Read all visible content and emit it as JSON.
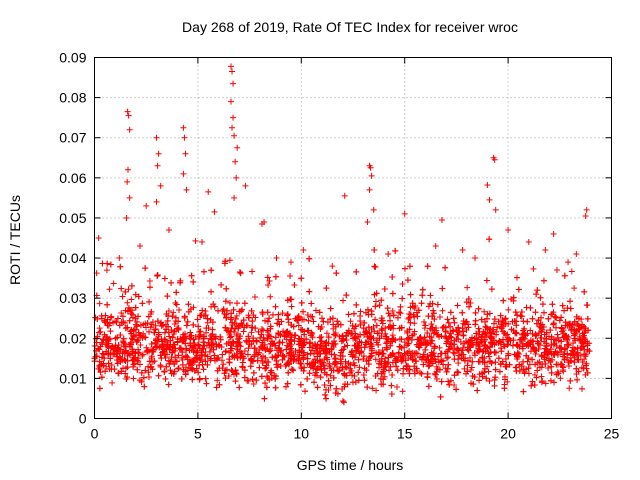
{
  "chart_data": {
    "type": "scatter",
    "title": "Day 268 of 2019, Rate Of TEC Index for receiver wroc",
    "xlabel": "GPS time / hours",
    "ylabel": "ROTI / TECUs",
    "xlim": [
      0,
      25
    ],
    "ylim": [
      0,
      0.09
    ],
    "x_ticks": [
      0,
      5,
      10,
      15,
      20,
      25
    ],
    "x_tick_labels": [
      "0",
      "5",
      "10",
      "15",
      "20",
      "25"
    ],
    "y_ticks": [
      0,
      0.01,
      0.02,
      0.03,
      0.04,
      0.05,
      0.06,
      0.07,
      0.08,
      0.09
    ],
    "y_tick_labels": [
      "0",
      "0.01",
      "0.02",
      "0.03",
      "0.04",
      "0.05",
      "0.06",
      "0.07",
      "0.08",
      "0.09"
    ],
    "grid": true,
    "marker": "+",
    "marker_color": "#ff0000",
    "series": [
      {
        "name": "ROTI",
        "points": [
          [
            1.6,
            0.0765
          ],
          [
            1.65,
            0.0755
          ],
          [
            1.7,
            0.072
          ],
          [
            1.62,
            0.062
          ],
          [
            1.58,
            0.059
          ],
          [
            1.7,
            0.055
          ],
          [
            1.55,
            0.05
          ],
          [
            3.0,
            0.07
          ],
          [
            3.1,
            0.066
          ],
          [
            3.05,
            0.063
          ],
          [
            3.2,
            0.058
          ],
          [
            3.0,
            0.054
          ],
          [
            4.3,
            0.0725
          ],
          [
            4.35,
            0.07
          ],
          [
            4.4,
            0.066
          ],
          [
            4.3,
            0.061
          ],
          [
            4.45,
            0.057
          ],
          [
            6.6,
            0.0878
          ],
          [
            6.65,
            0.0865
          ],
          [
            6.7,
            0.0835
          ],
          [
            6.6,
            0.079
          ],
          [
            6.7,
            0.075
          ],
          [
            6.65,
            0.0725
          ],
          [
            6.75,
            0.0705
          ],
          [
            6.9,
            0.0675
          ],
          [
            6.8,
            0.064
          ],
          [
            6.85,
            0.06
          ],
          [
            6.75,
            0.055
          ],
          [
            5.5,
            0.0565
          ],
          [
            5.8,
            0.0515
          ],
          [
            2.5,
            0.053
          ],
          [
            7.3,
            0.058
          ],
          [
            8.1,
            0.0485
          ],
          [
            8.2,
            0.049
          ],
          [
            13.3,
            0.063
          ],
          [
            13.35,
            0.0625
          ],
          [
            13.4,
            0.0605
          ],
          [
            13.3,
            0.057
          ],
          [
            13.5,
            0.052
          ],
          [
            13.2,
            0.049
          ],
          [
            12.1,
            0.0555
          ],
          [
            15.0,
            0.051
          ],
          [
            16.8,
            0.0495
          ],
          [
            19.3,
            0.065
          ],
          [
            19.35,
            0.0645
          ],
          [
            19.0,
            0.0582
          ],
          [
            19.1,
            0.0545
          ],
          [
            19.4,
            0.052
          ],
          [
            23.8,
            0.052
          ],
          [
            23.75,
            0.0505
          ],
          [
            20.0,
            0.047
          ],
          [
            21.0,
            0.044
          ],
          [
            22.2,
            0.046
          ],
          [
            10.1,
            0.042
          ],
          [
            8.8,
            0.04
          ],
          [
            0.2,
            0.045
          ],
          [
            0.6,
            0.037
          ],
          [
            1.2,
            0.04
          ],
          [
            2.2,
            0.043
          ],
          [
            3.6,
            0.047
          ],
          [
            5.2,
            0.044
          ],
          [
            9.5,
            0.039
          ],
          [
            11.5,
            0.038
          ],
          [
            14.2,
            0.041
          ],
          [
            16.5,
            0.043
          ],
          [
            17.8,
            0.042
          ],
          [
            18.4,
            0.04
          ],
          [
            21.8,
            0.042
          ],
          [
            22.9,
            0.039
          ],
          [
            23.3,
            0.041
          ]
        ]
      }
    ]
  }
}
